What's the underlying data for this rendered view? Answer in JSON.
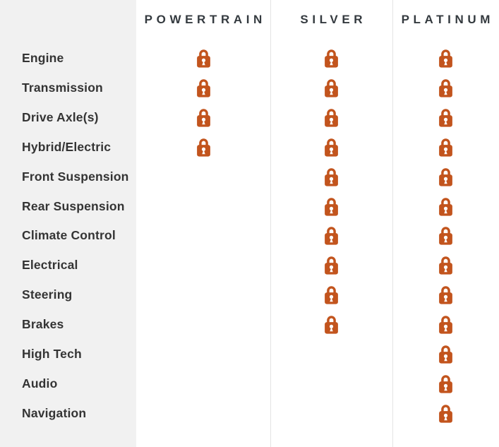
{
  "table_title": "coverage-comparison",
  "columns": [
    {
      "id": "powertrain",
      "label": "POWERTRAIN"
    },
    {
      "id": "silver",
      "label": "SILVER"
    },
    {
      "id": "platinum",
      "label": "PLATINUM"
    }
  ],
  "rows": [
    {
      "label": "Engine",
      "coverage": {
        "powertrain": true,
        "silver": true,
        "platinum": true
      }
    },
    {
      "label": "Transmission",
      "coverage": {
        "powertrain": true,
        "silver": true,
        "platinum": true
      }
    },
    {
      "label": "Drive Axle(s)",
      "coverage": {
        "powertrain": true,
        "silver": true,
        "platinum": true
      }
    },
    {
      "label": "Hybrid/Electric",
      "coverage": {
        "powertrain": true,
        "silver": true,
        "platinum": true
      }
    },
    {
      "label": "Front Suspension",
      "coverage": {
        "powertrain": false,
        "silver": true,
        "platinum": true
      }
    },
    {
      "label": "Rear Suspension",
      "coverage": {
        "powertrain": false,
        "silver": true,
        "platinum": true
      }
    },
    {
      "label": "Climate Control",
      "coverage": {
        "powertrain": false,
        "silver": true,
        "platinum": true
      }
    },
    {
      "label": "Electrical",
      "coverage": {
        "powertrain": false,
        "silver": true,
        "platinum": true
      }
    },
    {
      "label": "Steering",
      "coverage": {
        "powertrain": false,
        "silver": true,
        "platinum": true
      }
    },
    {
      "label": "Brakes",
      "coverage": {
        "powertrain": false,
        "silver": true,
        "platinum": true
      }
    },
    {
      "label": "High Tech",
      "coverage": {
        "powertrain": false,
        "silver": false,
        "platinum": true
      }
    },
    {
      "label": "Audio",
      "coverage": {
        "powertrain": false,
        "silver": false,
        "platinum": true
      }
    },
    {
      "label": "Navigation",
      "coverage": {
        "powertrain": false,
        "silver": false,
        "platinum": true
      }
    }
  ],
  "icons": {
    "covered": "lock-icon"
  },
  "colors": {
    "lock": "#c2541d",
    "label_column_bg": "#f1f1f1",
    "divider": "#e4e4e4",
    "header_text": "#343a3f",
    "label_text": "#343434"
  }
}
